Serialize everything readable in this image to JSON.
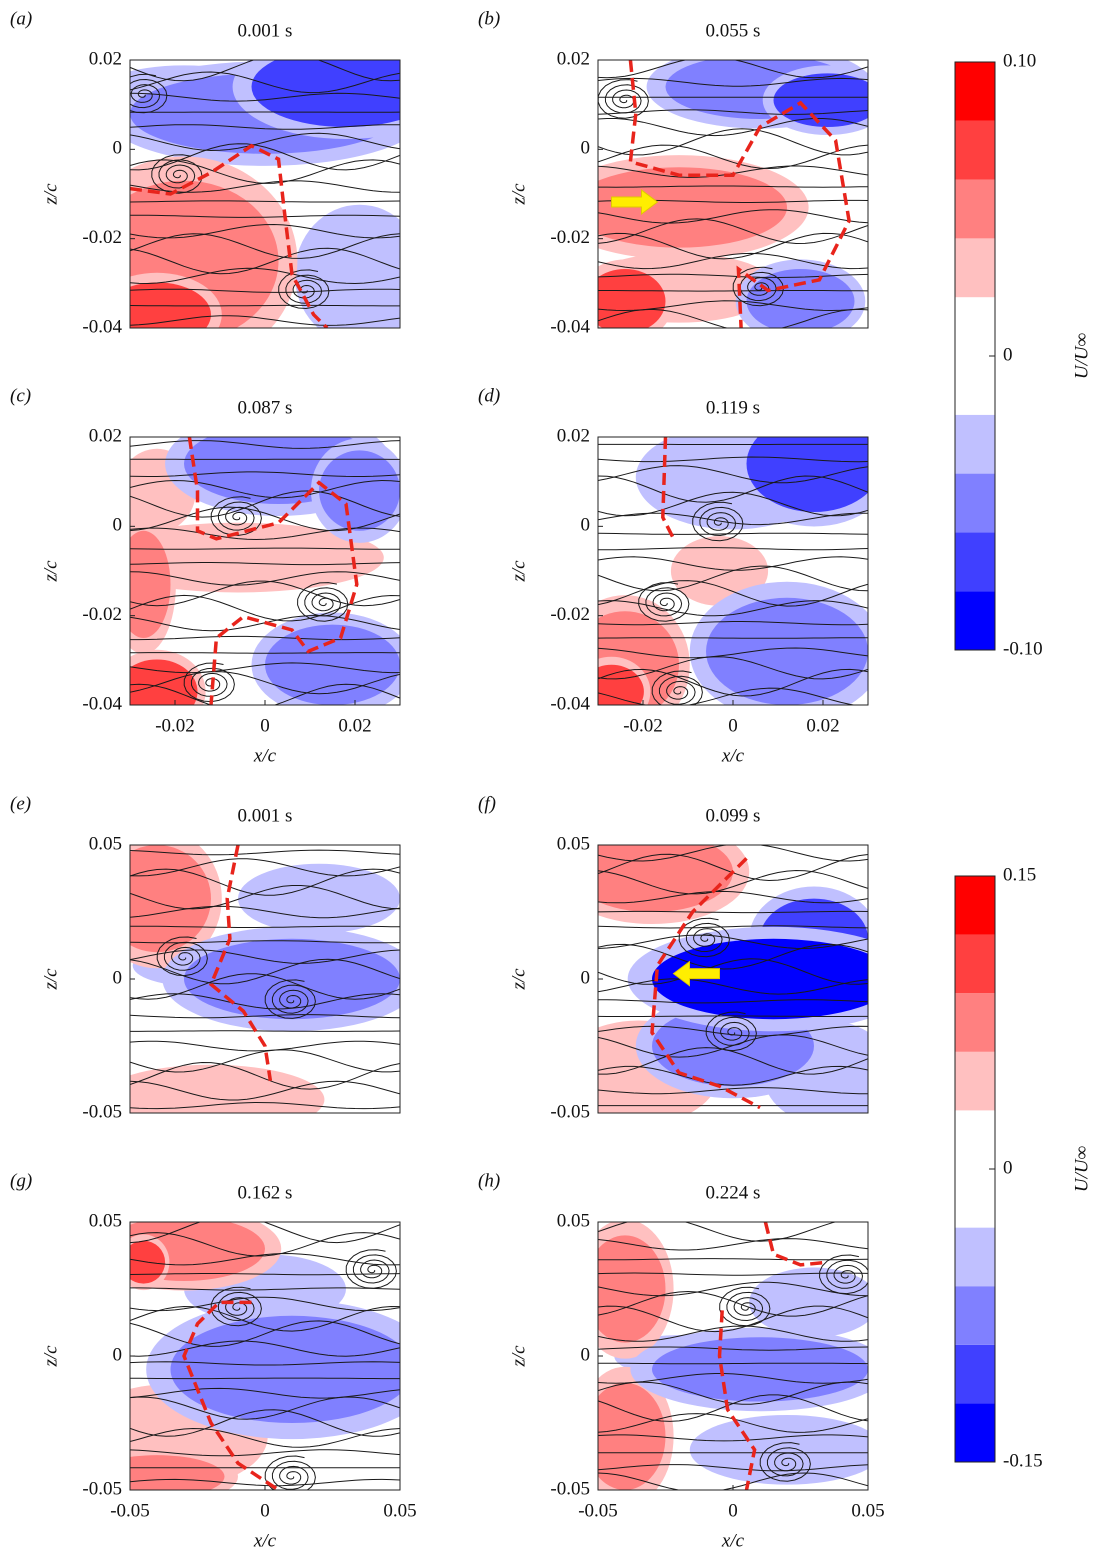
{
  "chart_data": [
    {
      "type": "streamline",
      "panel_label": "(a)",
      "title": "0.001 s",
      "xlim": [
        -0.03,
        0.03
      ],
      "ylim": [
        -0.04,
        0.02
      ],
      "yticks": [
        0.02,
        0,
        -0.02,
        -0.04
      ],
      "ylabel": "z/c"
    },
    {
      "type": "streamline",
      "panel_label": "(b)",
      "title": "0.055 s",
      "xlim": [
        -0.03,
        0.03
      ],
      "ylim": [
        -0.04,
        0.02
      ],
      "yticks": [
        0.02,
        0,
        -0.02,
        -0.04
      ],
      "ylabel": "z/c"
    },
    {
      "type": "streamline",
      "panel_label": "(c)",
      "title": "0.087 s",
      "xlim": [
        -0.03,
        0.03
      ],
      "ylim": [
        -0.04,
        0.02
      ],
      "yticks": [
        0.02,
        0,
        -0.02,
        -0.04
      ],
      "ylabel": "z/c",
      "xticks": [
        -0.02,
        0,
        0.02
      ],
      "xlabel": "x/c"
    },
    {
      "type": "streamline",
      "panel_label": "(d)",
      "title": "0.119 s",
      "xlim": [
        -0.03,
        0.03
      ],
      "ylim": [
        -0.04,
        0.02
      ],
      "yticks": [
        0.02,
        0,
        -0.02,
        -0.04
      ],
      "ylabel": "z/c",
      "xticks": [
        -0.02,
        0,
        0.02
      ],
      "xlabel": "x/c"
    },
    {
      "type": "streamline",
      "panel_label": "(e)",
      "title": "0.001 s",
      "xlim": [
        -0.05,
        0.05
      ],
      "ylim": [
        -0.05,
        0.05
      ],
      "yticks": [
        0.05,
        0,
        -0.05
      ],
      "ylabel": "z/c"
    },
    {
      "type": "streamline",
      "panel_label": "(f)",
      "title": "0.099 s",
      "xlim": [
        -0.05,
        0.05
      ],
      "ylim": [
        -0.05,
        0.05
      ],
      "yticks": [
        0.05,
        0,
        -0.05
      ],
      "ylabel": "z/c"
    },
    {
      "type": "streamline",
      "panel_label": "(g)",
      "title": "0.162 s",
      "xlim": [
        -0.05,
        0.05
      ],
      "ylim": [
        -0.05,
        0.05
      ],
      "yticks": [
        0.05,
        0,
        -0.05
      ],
      "ylabel": "z/c",
      "xticks": [
        -0.05,
        0,
        0.05
      ],
      "xlabel": "x/c"
    },
    {
      "type": "streamline",
      "panel_label": "(h)",
      "title": "0.224 s",
      "xlim": [
        -0.05,
        0.05
      ],
      "ylim": [
        -0.05,
        0.05
      ],
      "yticks": [
        0.05,
        0,
        -0.05
      ],
      "ylabel": "z/c",
      "xticks": [
        -0.05,
        0,
        0.05
      ],
      "xlabel": "x/c"
    },
    {
      "type": "colorbar",
      "label": "U/U∞",
      "ylim": [
        -0.1,
        0.1
      ],
      "yticks": [
        {
          "value": -0.1,
          "label": "-0.10"
        },
        0,
        {
          "value": 0.1,
          "label": "0.10"
        }
      ],
      "levels": [
        -0.1,
        -0.08,
        -0.06,
        -0.04,
        -0.02,
        0.02,
        0.04,
        0.06,
        0.08,
        0.1
      ],
      "colors": [
        "#0000ff",
        "#4040ff",
        "#8080ff",
        "#c0c0ff",
        "#ffffff",
        "#ffc0c0",
        "#ff8080",
        "#ff4040",
        "#ff0000"
      ]
    },
    {
      "type": "colorbar",
      "label": "U/U∞",
      "ylim": [
        -0.15,
        0.15
      ],
      "yticks": [
        {
          "value": -0.15,
          "label": "-0.15"
        },
        0,
        {
          "value": 0.15,
          "label": "0.15"
        }
      ],
      "levels": [
        -0.15,
        -0.12,
        -0.09,
        -0.06,
        -0.03,
        0.03,
        0.06,
        0.09,
        0.12,
        0.15
      ],
      "colors": [
        "#0000ff",
        "#4040ff",
        "#8080ff",
        "#c0c0ff",
        "#ffffff",
        "#ffc0c0",
        "#ff8080",
        "#ff4040",
        "#ff0000"
      ]
    }
  ]
}
